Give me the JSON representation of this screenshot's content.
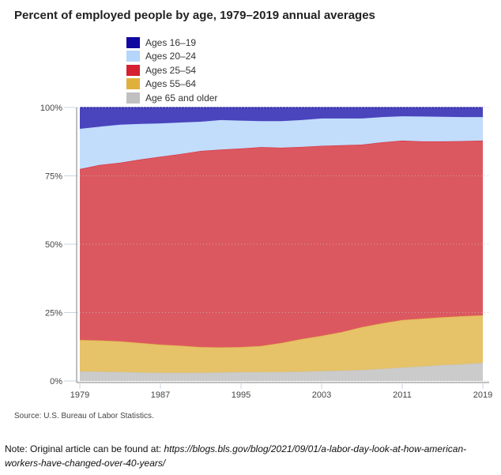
{
  "chart_data": {
    "type": "area",
    "stacked": true,
    "title": "Percent of employed people by age, 1979–2019 annual averages",
    "xlabel": "",
    "ylabel": "",
    "x": [
      1979,
      1981,
      1983,
      1985,
      1987,
      1989,
      1991,
      1993,
      1995,
      1997,
      1999,
      2001,
      2003,
      2005,
      2007,
      2009,
      2011,
      2013,
      2015,
      2017,
      2019
    ],
    "xticks": [
      "1979",
      "1987",
      "1995",
      "2003",
      "2011",
      "2019"
    ],
    "yticks": [
      "0%",
      "25%",
      "50%",
      "75%",
      "100%"
    ],
    "ylim": [
      0,
      100
    ],
    "grid": "horizontal dotted",
    "legend_position": "top",
    "series": [
      {
        "name": "Ages 16–19",
        "color": "#1008a0",
        "fill": "#4a44bd",
        "values": [
          7.8,
          7.0,
          6.3,
          6.0,
          5.8,
          5.5,
          5.2,
          4.6,
          4.8,
          5.0,
          5.0,
          4.6,
          4.0,
          4.0,
          4.0,
          3.5,
          3.2,
          3.3,
          3.4,
          3.5,
          3.5
        ]
      },
      {
        "name": "Ages 20–24",
        "color": "#b5d5fb",
        "fill": "#c2dcfc",
        "values": [
          14.7,
          14.0,
          13.9,
          13.0,
          12.2,
          11.5,
          10.7,
          10.8,
          10.2,
          9.5,
          9.7,
          9.8,
          10.0,
          9.8,
          9.6,
          9.2,
          8.9,
          9.1,
          9.0,
          8.8,
          8.6
        ]
      },
      {
        "name": "Ages 25–54",
        "color": "#d42030",
        "fill": "#dc5860",
        "values": [
          62.5,
          64.2,
          65.3,
          67.1,
          68.7,
          70.1,
          71.7,
          72.3,
          72.6,
          72.7,
          71.4,
          70.3,
          69.5,
          68.3,
          66.7,
          66.2,
          65.6,
          64.8,
          64.3,
          64.0,
          63.9
        ]
      },
      {
        "name": "Ages 55–64",
        "color": "#e0b03c",
        "fill": "#e6c268",
        "values": [
          11.5,
          11.4,
          11.2,
          10.8,
          10.3,
          9.9,
          9.4,
          9.2,
          9.2,
          9.6,
          10.6,
          11.9,
          12.9,
          14.1,
          15.7,
          16.7,
          17.4,
          17.5,
          17.5,
          17.6,
          17.4
        ]
      },
      {
        "name": "Age 65 and older",
        "color": "#c0c0c0",
        "fill": "#cbcbcb",
        "values": [
          3.5,
          3.4,
          3.3,
          3.1,
          3.0,
          3.0,
          3.0,
          3.1,
          3.2,
          3.2,
          3.3,
          3.4,
          3.6,
          3.8,
          4.0,
          4.4,
          4.9,
          5.3,
          5.8,
          6.1,
          6.6
        ]
      }
    ]
  },
  "source": "Source: U.S. Bureau of Labor Statistics.",
  "note": {
    "prefix": "Note: Original article can be found at: ",
    "url": "https://blogs.bls.gov/blog/2021/09/01/a-labor-day-look-at-how-american-workers-have-changed-over-40-years/"
  }
}
